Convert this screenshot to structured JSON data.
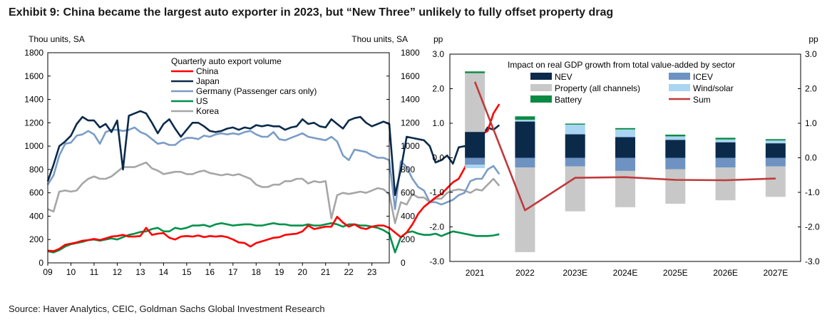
{
  "title": "Exhibit 9: China became the largest auto exporter in 2023, but “New Three” unlikely to fully offset property drag",
  "source": "Source: Haver Analytics, CEIC, Goldman Sachs Global Investment Research",
  "chart_data": [
    {
      "type": "line",
      "units_left": "Thou units, SA",
      "units_right": "Thou units, SA",
      "legend_title": "Quarterly auto export volume",
      "ylim": [
        0,
        1800
      ],
      "yticks": [
        "0",
        "200",
        "400",
        "600",
        "800",
        "1000",
        "1200",
        "1400",
        "1600",
        "1800"
      ],
      "xlim": [
        2009,
        2023.75
      ],
      "xticks": [
        "09",
        "10",
        "11",
        "12",
        "13",
        "14",
        "15",
        "16",
        "17",
        "18",
        "19",
        "20",
        "21",
        "22",
        "23"
      ],
      "start": 2009.0,
      "step": 0.25,
      "series": [
        {
          "name": "China",
          "color": "#ff0000",
          "values": [
            105,
            100,
            120,
            155,
            165,
            175,
            190,
            195,
            205,
            195,
            210,
            225,
            230,
            240,
            225,
            225,
            230,
            300,
            240,
            250,
            255,
            215,
            200,
            225,
            230,
            225,
            235,
            220,
            230,
            225,
            230,
            220,
            200,
            175,
            170,
            140,
            170,
            185,
            200,
            215,
            220,
            240,
            245,
            250,
            270,
            320,
            290,
            300,
            310,
            310,
            395,
            345,
            310,
            330,
            300,
            290,
            310,
            320,
            320,
            300,
            260,
            220,
            260,
            330,
            420,
            480,
            520,
            560,
            590,
            640,
            690,
            720,
            810,
            920,
            1020,
            1100,
            1130,
            1280,
            1360
          ]
        },
        {
          "name": "Japan",
          "color": "#0b2a4a",
          "values": [
            700,
            840,
            1000,
            1040,
            1090,
            1190,
            1250,
            1220,
            1220,
            1160,
            1190,
            1120,
            1220,
            800,
            1260,
            1280,
            1300,
            1280,
            1200,
            1110,
            1190,
            1230,
            1150,
            1080,
            1140,
            1200,
            1200,
            1170,
            1130,
            1120,
            1130,
            1150,
            1160,
            1140,
            1160,
            1150,
            1180,
            1170,
            1180,
            1170,
            1170,
            1140,
            1160,
            1170,
            1230,
            1190,
            1200,
            1170,
            1160,
            1230,
            1190,
            1150,
            1220,
            1240,
            1250,
            1200,
            1170,
            1190,
            1210,
            1190,
            580,
            800,
            1080,
            1070,
            1060,
            1050,
            1000,
            860,
            880,
            920,
            850,
            990,
            1000,
            970,
            1050,
            1080,
            1160,
            1140,
            1180
          ]
        },
        {
          "name": "Germany  (Passenger cars only)",
          "color": "#7a9cc6",
          "values": [
            670,
            750,
            920,
            1020,
            1030,
            1090,
            1100,
            1130,
            1100,
            1020,
            1120,
            1140,
            1140,
            1130,
            1140,
            1160,
            1120,
            1100,
            1060,
            1020,
            1030,
            1010,
            1010,
            1050,
            1070,
            1070,
            1060,
            1090,
            1080,
            1100,
            1110,
            1100,
            1110,
            1100,
            1120,
            1130,
            1100,
            1080,
            1080,
            1120,
            1060,
            1050,
            1070,
            1090,
            1110,
            1080,
            1070,
            1060,
            1050,
            1080,
            1040,
            920,
            880,
            970,
            960,
            950,
            920,
            900,
            900,
            880,
            460,
            870,
            820,
            720,
            650,
            620,
            520,
            520,
            500,
            520,
            540,
            580,
            600,
            700,
            720,
            720,
            800,
            830,
            760
          ]
        },
        {
          "name": "US",
          "color": "#00914a",
          "values": [
            100,
            90,
            110,
            140,
            160,
            170,
            180,
            195,
            200,
            190,
            200,
            210,
            200,
            220,
            240,
            250,
            265,
            270,
            290,
            300,
            270,
            270,
            300,
            290,
            300,
            320,
            320,
            325,
            310,
            330,
            340,
            330,
            320,
            325,
            330,
            330,
            320,
            320,
            330,
            340,
            330,
            330,
            320,
            320,
            320,
            330,
            320,
            320,
            330,
            340,
            330,
            310,
            330,
            330,
            320,
            320,
            310,
            300,
            280,
            250,
            90,
            220,
            260,
            270,
            250,
            240,
            240,
            250,
            230,
            250,
            270,
            260,
            250,
            240,
            230,
            230,
            230,
            235,
            245
          ]
        },
        {
          "name": "Korea",
          "color": "#a6a6a6",
          "values": [
            460,
            440,
            610,
            620,
            610,
            620,
            680,
            720,
            740,
            720,
            720,
            740,
            780,
            820,
            820,
            820,
            840,
            860,
            810,
            790,
            760,
            770,
            780,
            780,
            760,
            760,
            780,
            790,
            770,
            760,
            750,
            760,
            750,
            760,
            740,
            720,
            670,
            650,
            650,
            670,
            670,
            700,
            700,
            720,
            720,
            680,
            700,
            690,
            700,
            380,
            580,
            600,
            590,
            600,
            610,
            600,
            620,
            640,
            630,
            590,
            340,
            520,
            500,
            590,
            560,
            560,
            520,
            550,
            550,
            600,
            620,
            630,
            620,
            600,
            630,
            620,
            670,
            720,
            660
          ]
        }
      ]
    },
    {
      "type": "bar",
      "stacked": true,
      "units_left": "pp",
      "units_right": "pp",
      "legend_title": "Impact on real GDP growth from total value-added by sector",
      "ylim": [
        -3.0,
        3.0
      ],
      "yticks": [
        "-3.0",
        "-2.0",
        "-1.0",
        "0.0",
        "1.0",
        "2.0",
        "3.0"
      ],
      "categories": [
        "2021",
        "2022",
        "2023E",
        "2024E",
        "2025E",
        "2026E",
        "2027E"
      ],
      "series": [
        {
          "name": "NEV",
          "color": "#0b2a4a",
          "values": [
            0.75,
            1.05,
            0.68,
            0.6,
            0.52,
            0.45,
            0.42
          ]
        },
        {
          "name": "ICEV",
          "color": "#6e93c2",
          "values": [
            -0.2,
            -0.28,
            -0.25,
            -0.38,
            -0.33,
            -0.28,
            -0.25
          ]
        },
        {
          "name": "Property (all channels)",
          "color": "#c8c8c8",
          "values": [
            1.7,
            -2.45,
            -1.3,
            -1.05,
            -1.0,
            -0.95,
            -0.88
          ]
        },
        {
          "name": "Wind/solar",
          "color": "#a9d5f2",
          "values": [
            -0.1,
            0.05,
            0.28,
            0.22,
            0.1,
            0.08,
            0.08
          ]
        },
        {
          "name": "Battery",
          "color": "#0a8a43",
          "values": [
            0.05,
            0.1,
            0.03,
            0.04,
            0.05,
            0.05,
            0.04
          ]
        }
      ],
      "sum": {
        "name": "Sum",
        "color": "#c0393b",
        "values": [
          2.2,
          -1.52,
          -0.58,
          -0.56,
          -0.64,
          -0.65,
          -0.6
        ]
      }
    }
  ]
}
